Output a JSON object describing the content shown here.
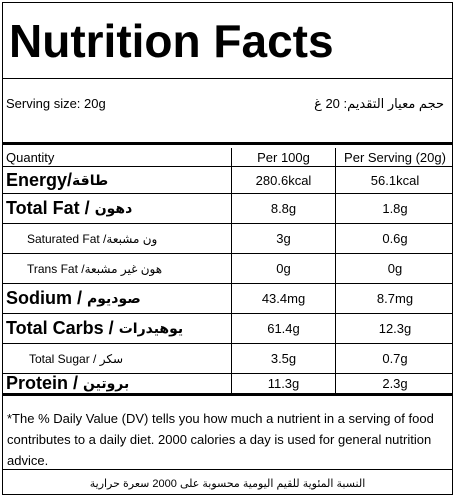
{
  "title": "Nutrition Facts",
  "serving": {
    "en": "Serving size: 20g",
    "ar": "حجم معيار التقديم: 20 غ"
  },
  "table": {
    "header": {
      "name": "Quantity",
      "per100": "Per 100g",
      "perServing": "Per Serving (20g)"
    },
    "rows": [
      {
        "en": "Energy/",
        "ar": "طاقة",
        "per100": "280.6kcal",
        "perServing": "56.1kcal"
      },
      {
        "en": "Total Fat / ",
        "ar": "دهون",
        "per100": "8.8g",
        "perServing": "1.8g"
      },
      {
        "en": "Saturated Fat / ",
        "ar": "ون مشبعة",
        "per100": "3g",
        "perServing": "0.6g"
      },
      {
        "en": "Trans Fat / ",
        "ar": "هون غير مشبعة",
        "per100": "0g",
        "perServing": "0g"
      },
      {
        "en": "Sodium / ",
        "ar": "صوديوم",
        "per100": "43.4mg",
        "perServing": "8.7mg"
      },
      {
        "en": "Total Carbs / ",
        "ar": "يوهيدرات",
        "per100": "61.4g",
        "perServing": "12.3g"
      },
      {
        "en": "Total Sugar / ",
        "ar": "سكر",
        "per100": "3.5g",
        "perServing": "0.7g"
      },
      {
        "en": "Protein / ",
        "ar": "بروتين",
        "per100": "11.3g",
        "perServing": "2.3g"
      }
    ]
  },
  "footnote": {
    "en": "*The % Daily Value (DV) tells you how much a nutrient in a serving of food contributes to a daily diet. 2000 calories a day is used for general nutrition advice.",
    "ar": "النسبة المئوية للقيم اليومية محسوبة على 2000 سعرة حرارية"
  }
}
